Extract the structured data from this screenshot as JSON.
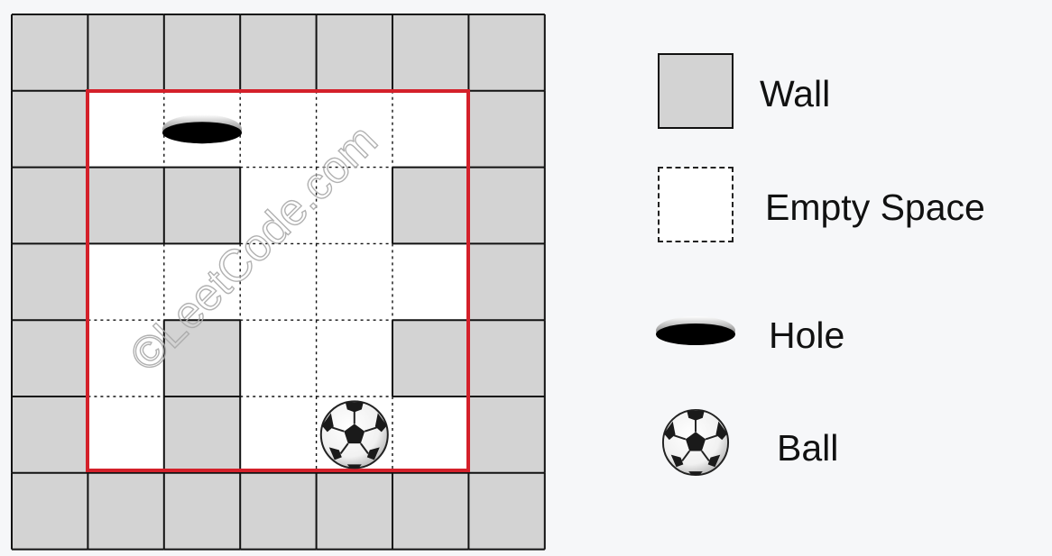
{
  "maze": {
    "grid": [
      [
        "wall",
        "wall",
        "wall",
        "wall",
        "wall",
        "wall",
        "wall"
      ],
      [
        "wall",
        "empty",
        "hole",
        "empty",
        "empty",
        "empty",
        "wall"
      ],
      [
        "wall",
        "wall",
        "wall",
        "empty",
        "empty",
        "wall",
        "wall"
      ],
      [
        "wall",
        "empty",
        "empty",
        "empty",
        "empty",
        "empty",
        "wall"
      ],
      [
        "wall",
        "empty",
        "wall",
        "empty",
        "empty",
        "wall",
        "wall"
      ],
      [
        "wall",
        "empty",
        "wall",
        "empty",
        "ball",
        "empty",
        "wall"
      ],
      [
        "wall",
        "wall",
        "wall",
        "wall",
        "wall",
        "wall",
        "wall"
      ]
    ],
    "colors": {
      "wall": "#d3d3d3",
      "empty": "#ffffff",
      "boundary": "#d4202a",
      "grid_line": "#111111"
    },
    "watermark": "©LeetCode.com"
  },
  "legend": {
    "wall_label": "Wall",
    "empty_label": "Empty Space",
    "hole_label": "Hole",
    "ball_label": "Ball",
    "hole_icon": "hole-icon",
    "ball_icon": "soccer-ball-icon"
  }
}
